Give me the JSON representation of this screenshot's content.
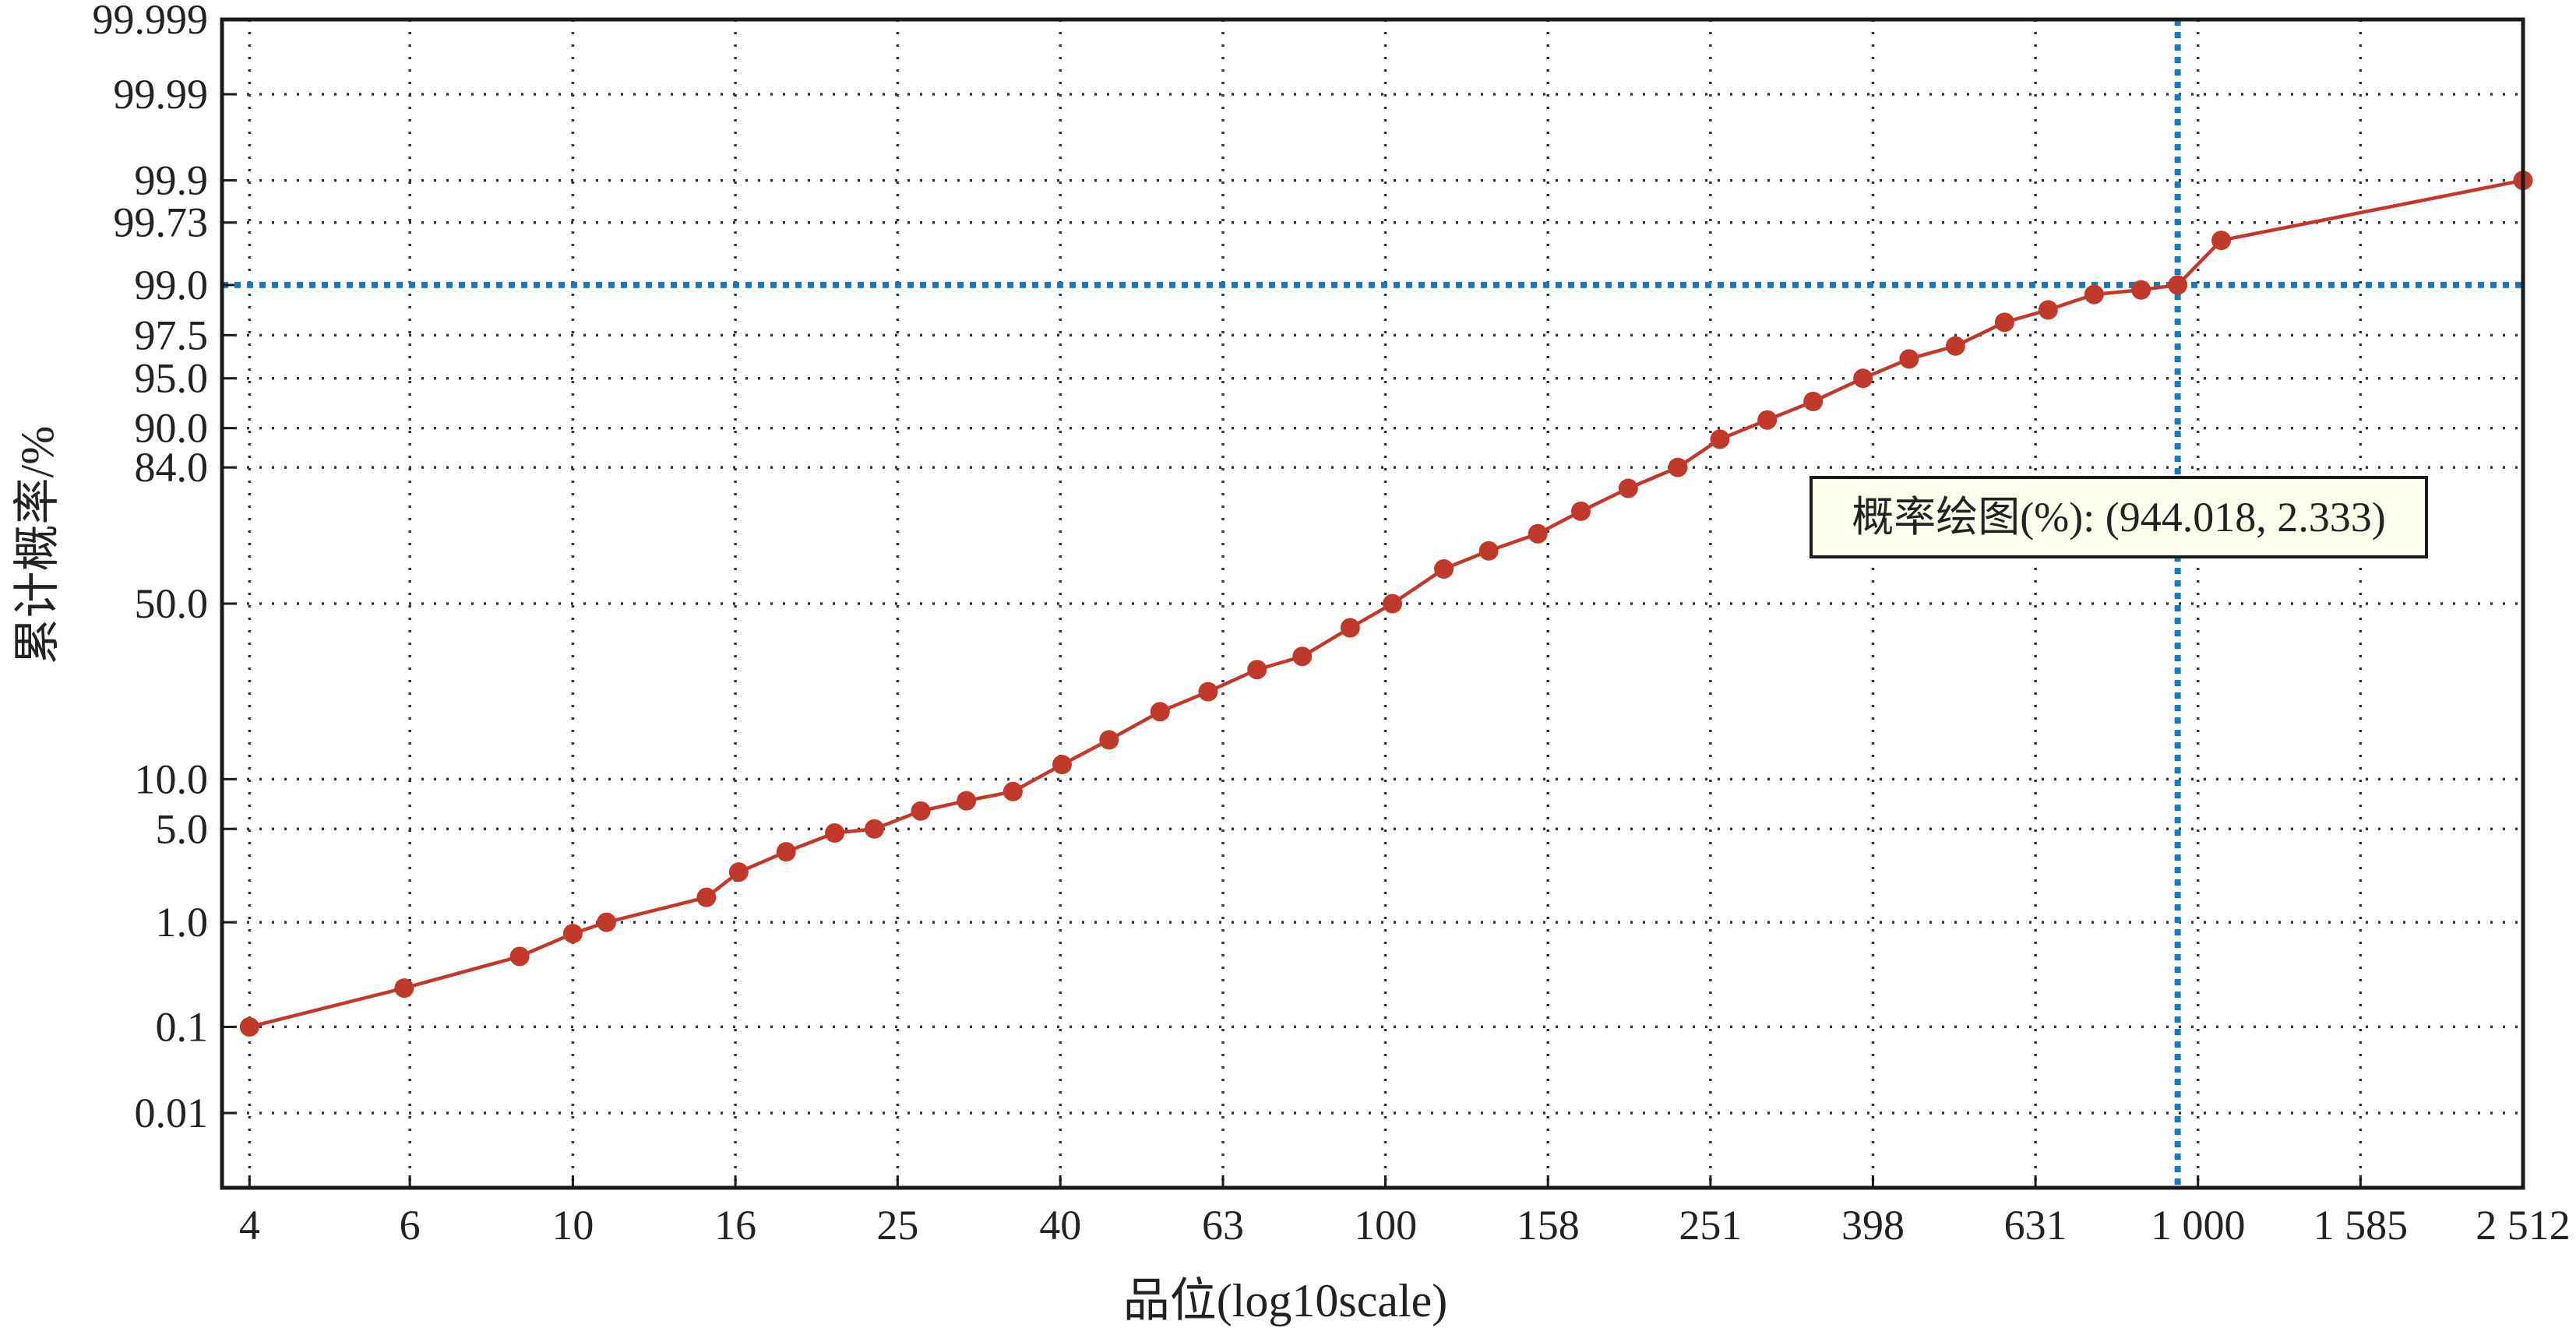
{
  "chart_data": {
    "type": "line",
    "xlabel": "品位(log10scale)",
    "ylabel": "累计概率/%",
    "x_scale": "log10",
    "y_scale": "normal-probability",
    "xlim": [
      3.7,
      2512
    ],
    "ylim": [
      0.001,
      99.999
    ],
    "grid": true,
    "x_ticks": [
      {
        "value": 4,
        "label": "4"
      },
      {
        "value": 6.3,
        "label": "6"
      },
      {
        "value": 10,
        "label": "10"
      },
      {
        "value": 15.85,
        "label": "16"
      },
      {
        "value": 25.1,
        "label": "25"
      },
      {
        "value": 39.8,
        "label": "40"
      },
      {
        "value": 63.1,
        "label": "63"
      },
      {
        "value": 100,
        "label": "100"
      },
      {
        "value": 158.5,
        "label": "158"
      },
      {
        "value": 251.2,
        "label": "251"
      },
      {
        "value": 398.1,
        "label": "398"
      },
      {
        "value": 631,
        "label": "631"
      },
      {
        "value": 1000,
        "label": "1 000"
      },
      {
        "value": 1585,
        "label": "1 585"
      },
      {
        "value": 2512,
        "label": "2 512"
      }
    ],
    "y_ticks": [
      {
        "value": 0.01,
        "label": "0.01"
      },
      {
        "value": 0.1,
        "label": "0.1"
      },
      {
        "value": 1.0,
        "label": "1.0"
      },
      {
        "value": 5.0,
        "label": "5.0"
      },
      {
        "value": 10.0,
        "label": "10.0"
      },
      {
        "value": 50.0,
        "label": "50.0"
      },
      {
        "value": 84.0,
        "label": "84.0"
      },
      {
        "value": 90.0,
        "label": "90.0"
      },
      {
        "value": 95.0,
        "label": "95.0"
      },
      {
        "value": 97.5,
        "label": "97.5"
      },
      {
        "value": 99.0,
        "label": "99.0"
      },
      {
        "value": 99.73,
        "label": "99.73"
      },
      {
        "value": 99.9,
        "label": "99.9"
      },
      {
        "value": 99.99,
        "label": "99.99"
      },
      {
        "value": 99.999,
        "label": "99.999"
      }
    ],
    "series": [
      {
        "color": "#c0392b",
        "points": [
          {
            "x": 4.0,
            "y": 0.1
          },
          {
            "x": 6.2,
            "y": 0.25
          },
          {
            "x": 8.6,
            "y": 0.5
          },
          {
            "x": 10.0,
            "y": 0.8
          },
          {
            "x": 11.0,
            "y": 1.0
          },
          {
            "x": 14.6,
            "y": 1.6
          },
          {
            "x": 16.0,
            "y": 2.5
          },
          {
            "x": 18.3,
            "y": 3.5
          },
          {
            "x": 21.0,
            "y": 4.7
          },
          {
            "x": 23.5,
            "y": 5.0
          },
          {
            "x": 26.8,
            "y": 6.5
          },
          {
            "x": 30.5,
            "y": 7.5
          },
          {
            "x": 34.8,
            "y": 8.5
          },
          {
            "x": 40.0,
            "y": 12.0
          },
          {
            "x": 45.7,
            "y": 16.0
          },
          {
            "x": 52.8,
            "y": 21.5
          },
          {
            "x": 60.5,
            "y": 26.0
          },
          {
            "x": 69.5,
            "y": 31.5
          },
          {
            "x": 79.0,
            "y": 35.0
          },
          {
            "x": 90.5,
            "y": 43.0
          },
          {
            "x": 102.0,
            "y": 50.0
          },
          {
            "x": 118.0,
            "y": 60.0
          },
          {
            "x": 134.0,
            "y": 65.0
          },
          {
            "x": 154.0,
            "y": 69.5
          },
          {
            "x": 174.0,
            "y": 75.0
          },
          {
            "x": 199.0,
            "y": 80.0
          },
          {
            "x": 229.0,
            "y": 84.0
          },
          {
            "x": 258.0,
            "y": 88.5
          },
          {
            "x": 295.0,
            "y": 91.0
          },
          {
            "x": 336.0,
            "y": 93.0
          },
          {
            "x": 387.0,
            "y": 95.0
          },
          {
            "x": 441.0,
            "y": 96.3
          },
          {
            "x": 503.0,
            "y": 97.0
          },
          {
            "x": 578.0,
            "y": 98.0
          },
          {
            "x": 654.0,
            "y": 98.4
          },
          {
            "x": 745.0,
            "y": 98.8
          },
          {
            "x": 851.0,
            "y": 98.9
          },
          {
            "x": 944.0,
            "y": 99.0
          },
          {
            "x": 1068.0,
            "y": 99.6
          },
          {
            "x": 2512.0,
            "y": 99.9
          }
        ]
      }
    ],
    "reference_lines": [
      {
        "orientation": "vertical",
        "x": 944.018,
        "color": "#1f77b4",
        "style": "dotted"
      },
      {
        "orientation": "horizontal",
        "y": 99.0,
        "color": "#1f77b4",
        "style": "dotted"
      }
    ],
    "annotation": {
      "text": "概率绘图(%): (944.018, 2.333)",
      "x": 944.018,
      "y": 99.0
    }
  }
}
